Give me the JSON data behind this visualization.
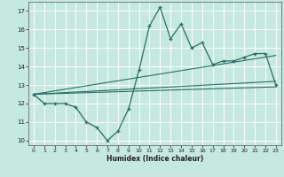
{
  "xlabel": "Humidex (Indice chaleur)",
  "background_color": "#c5e8e0",
  "grid_color": "#ffffff",
  "line_color": "#2a6e64",
  "xlim": [
    -0.5,
    23.5
  ],
  "ylim": [
    9.75,
    17.5
  ],
  "yticks": [
    10,
    11,
    12,
    13,
    14,
    15,
    16,
    17
  ],
  "xticks": [
    0,
    1,
    2,
    3,
    4,
    5,
    6,
    7,
    8,
    9,
    10,
    11,
    12,
    13,
    14,
    15,
    16,
    17,
    18,
    19,
    20,
    21,
    22,
    23
  ],
  "main_line_x": [
    0,
    1,
    2,
    3,
    4,
    5,
    6,
    7,
    8,
    9,
    10,
    11,
    12,
    13,
    14,
    15,
    16,
    17,
    18,
    19,
    20,
    21,
    22,
    23
  ],
  "main_line_y": [
    12.5,
    12.0,
    12.0,
    12.0,
    11.8,
    11.0,
    10.7,
    10.0,
    10.5,
    11.7,
    13.8,
    16.2,
    17.2,
    15.5,
    16.3,
    15.0,
    15.3,
    14.1,
    14.3,
    14.3,
    14.5,
    14.7,
    14.7,
    13.0
  ],
  "trend_line1_x": [
    0,
    23
  ],
  "trend_line1_y": [
    12.5,
    13.2
  ],
  "trend_line2_x": [
    0,
    23
  ],
  "trend_line2_y": [
    12.5,
    14.6
  ],
  "trend_line3_x": [
    0,
    23
  ],
  "trend_line3_y": [
    12.5,
    12.9
  ]
}
